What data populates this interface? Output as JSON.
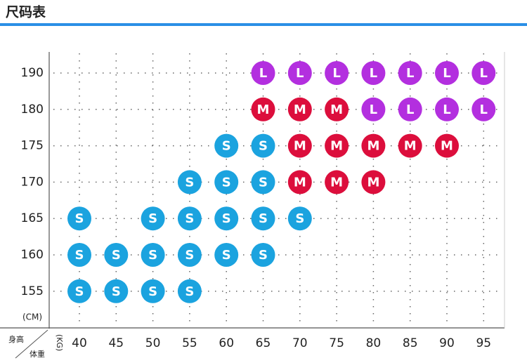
{
  "header": {
    "title": "尺码表"
  },
  "table": {
    "row_unit": "(CM)",
    "column_unit": "(KG)",
    "corner_row": "身高",
    "corner_column": "体重",
    "columns": [
      40,
      45,
      50,
      55,
      60,
      65,
      70,
      75,
      80,
      85,
      90,
      95
    ],
    "colors": {
      "S": "#1ba3df",
      "M": "#dc0e3c",
      "L": "#b32fdf"
    },
    "rows": [
      {
        "height": 190,
        "cells": [
          null,
          null,
          null,
          null,
          null,
          "L",
          "L",
          "L",
          "L",
          "L",
          "L",
          "L"
        ]
      },
      {
        "height": 180,
        "cells": [
          null,
          null,
          null,
          null,
          null,
          "M",
          "M",
          "M",
          "L",
          "L",
          "L",
          "L"
        ]
      },
      {
        "height": 175,
        "cells": [
          null,
          null,
          null,
          null,
          "S",
          "S",
          "M",
          "M",
          "M",
          "M",
          "M",
          null
        ]
      },
      {
        "height": 170,
        "cells": [
          null,
          null,
          null,
          "S",
          "S",
          "S",
          "M",
          "M",
          "M",
          null,
          null,
          null
        ]
      },
      {
        "height": 165,
        "cells": [
          "S",
          null,
          "S",
          "S",
          "S",
          "S",
          "S",
          null,
          null,
          null,
          null,
          null
        ]
      },
      {
        "height": 160,
        "cells": [
          "S",
          "S",
          "S",
          "S",
          "S",
          "S",
          null,
          null,
          null,
          null,
          null,
          null
        ]
      },
      {
        "height": 155,
        "cells": [
          "S",
          "S",
          "S",
          "S",
          null,
          null,
          null,
          null,
          null,
          null,
          null,
          null
        ]
      }
    ]
  }
}
